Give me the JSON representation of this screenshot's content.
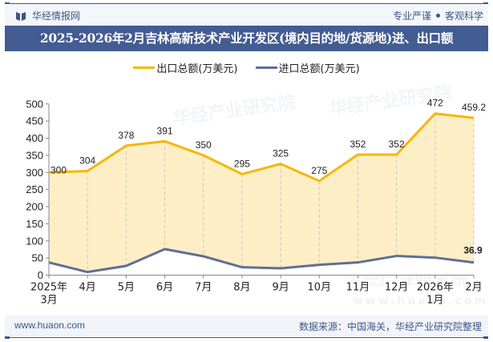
{
  "header": {
    "brand": "华经情报网",
    "slogan_left": "专业严谨",
    "slogan_right": "客观科学"
  },
  "title": "2025-2026年2月吉林高新技术产业开发区(境内目的地/货源地)进、出口额",
  "legend": [
    {
      "label": "出口总额(万美元)",
      "color": "#f5b700"
    },
    {
      "label": "进口总额(万美元)",
      "color": "#5f6f95"
    }
  ],
  "watermarks": {
    "text": "华经产业研究院",
    "url": "www.huaon.com"
  },
  "footer": {
    "website": "www.huaon.com",
    "source": "数据来源：中国海关，华经产业研究院整理"
  },
  "colors": {
    "export_line": "#f5b700",
    "export_fill": "#fdeec6",
    "import_line": "#5f6f95",
    "axis": "#888888",
    "grid_dash": "#c8c8c8",
    "brand_blue": "#435c91"
  },
  "chart_data": {
    "type": "area",
    "title": "2025-2026年2月吉林高新技术产业开发区(境内目的地/货源地)进、出口额",
    "categories": [
      "2025年\n3月",
      "4月",
      "5月",
      "6月",
      "7月",
      "8月",
      "9月",
      "10月",
      "11月",
      "12月",
      "2026年\n1月",
      "2月"
    ],
    "series": [
      {
        "name": "出口总额(万美元)",
        "values": [
          300,
          304,
          378,
          391,
          350,
          295,
          325,
          275,
          352,
          352,
          472,
          459.2
        ],
        "labels": [
          "300",
          "304",
          "378",
          "391",
          "350",
          "295",
          "325",
          "275",
          "352",
          "352",
          "472",
          "459.2"
        ]
      },
      {
        "name": "进口总额(万美元)",
        "values": [
          37,
          9,
          27,
          76,
          55,
          23,
          20,
          30,
          37,
          56,
          51,
          36.9
        ],
        "labels": [
          "",
          "",
          "",
          "",
          "",
          "",
          "",
          "",
          "",
          "",
          "",
          "36.9"
        ]
      }
    ],
    "xlabel": "",
    "ylabel": "",
    "ylim": [
      0,
      500
    ],
    "yticks": [
      0,
      50,
      100,
      150,
      200,
      250,
      300,
      350,
      400,
      450,
      500
    ],
    "grid": "vertical dashed",
    "legend_position": "top"
  }
}
